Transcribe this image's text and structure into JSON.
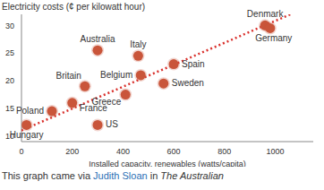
{
  "chart_data": {
    "type": "scatter",
    "y_label": "Electricity costs (¢ per kilowatt hour)",
    "x_label": "Installed capacity, renewables (watts/capita)",
    "categories": [
      "Hungary",
      "Poland",
      "France",
      "US",
      "Britain",
      "Australia",
      "Greece",
      "Belgium",
      "Italy",
      "Spain",
      "Sweden",
      "Denmark",
      "Germany"
    ],
    "x": [
      20,
      120,
      200,
      300,
      250,
      300,
      410,
      470,
      460,
      600,
      560,
      960,
      980
    ],
    "values": [
      12,
      14.5,
      16,
      12,
      19,
      25.5,
      17.5,
      21,
      24.5,
      23,
      19.5,
      30,
      29.5
    ],
    "color": "#c9553a",
    "marker": "circle",
    "trend": {
      "x": [
        0,
        1100
      ],
      "values": [
        11,
        32.8
      ],
      "color": "#d9302c",
      "line_style": "dotted"
    },
    "xlim": [
      0,
      1150
    ],
    "ylim": [
      9,
      32
    ],
    "xticks": [
      0,
      200,
      400,
      600,
      800,
      1000
    ],
    "yticks": [
      10,
      15,
      20,
      25,
      30
    ],
    "grid": false,
    "caption": {
      "prefix": "This graph came via",
      "author": "Judith Sloan",
      "middle": "in",
      "source": "The Australian"
    }
  }
}
